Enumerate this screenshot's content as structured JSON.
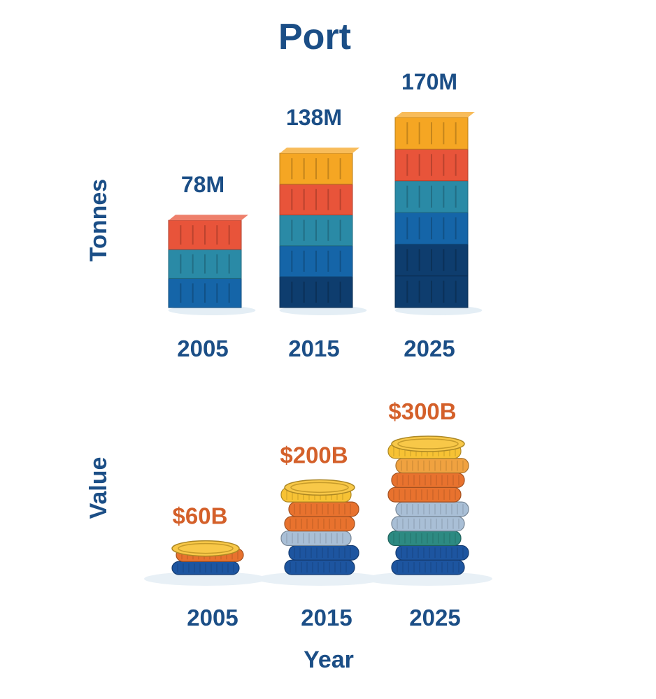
{
  "chart_data": [
    {
      "type": "bar",
      "title": "Port",
      "ylabel": "Tonnes",
      "categories": [
        "2005",
        "2015",
        "2025"
      ],
      "values": [
        78,
        138,
        170
      ],
      "value_labels": [
        "78M",
        "138M",
        "170M"
      ],
      "ylim": [
        0,
        170
      ],
      "grid": false,
      "mark": "stacked-shipping-containers",
      "colors": [
        "#0e3d6e",
        "#1565a8",
        "#2a8aa6",
        "#e8543a",
        "#f5a623"
      ],
      "value_label_color": "#1b4e86"
    },
    {
      "type": "bar",
      "ylabel": "Value",
      "xlabel": "Year",
      "categories": [
        "2005",
        "2015",
        "2025"
      ],
      "values": [
        60,
        200,
        300
      ],
      "value_labels": [
        "$60B",
        "$200B",
        "$300B"
      ],
      "ylim": [
        0,
        300
      ],
      "grid": false,
      "mark": "stacked-coins",
      "colors": [
        "#1d55a0",
        "#2d8a82",
        "#a9bfd6",
        "#e8722e",
        "#f0a240",
        "#f7c234"
      ],
      "value_label_color": "#d4602a"
    }
  ]
}
